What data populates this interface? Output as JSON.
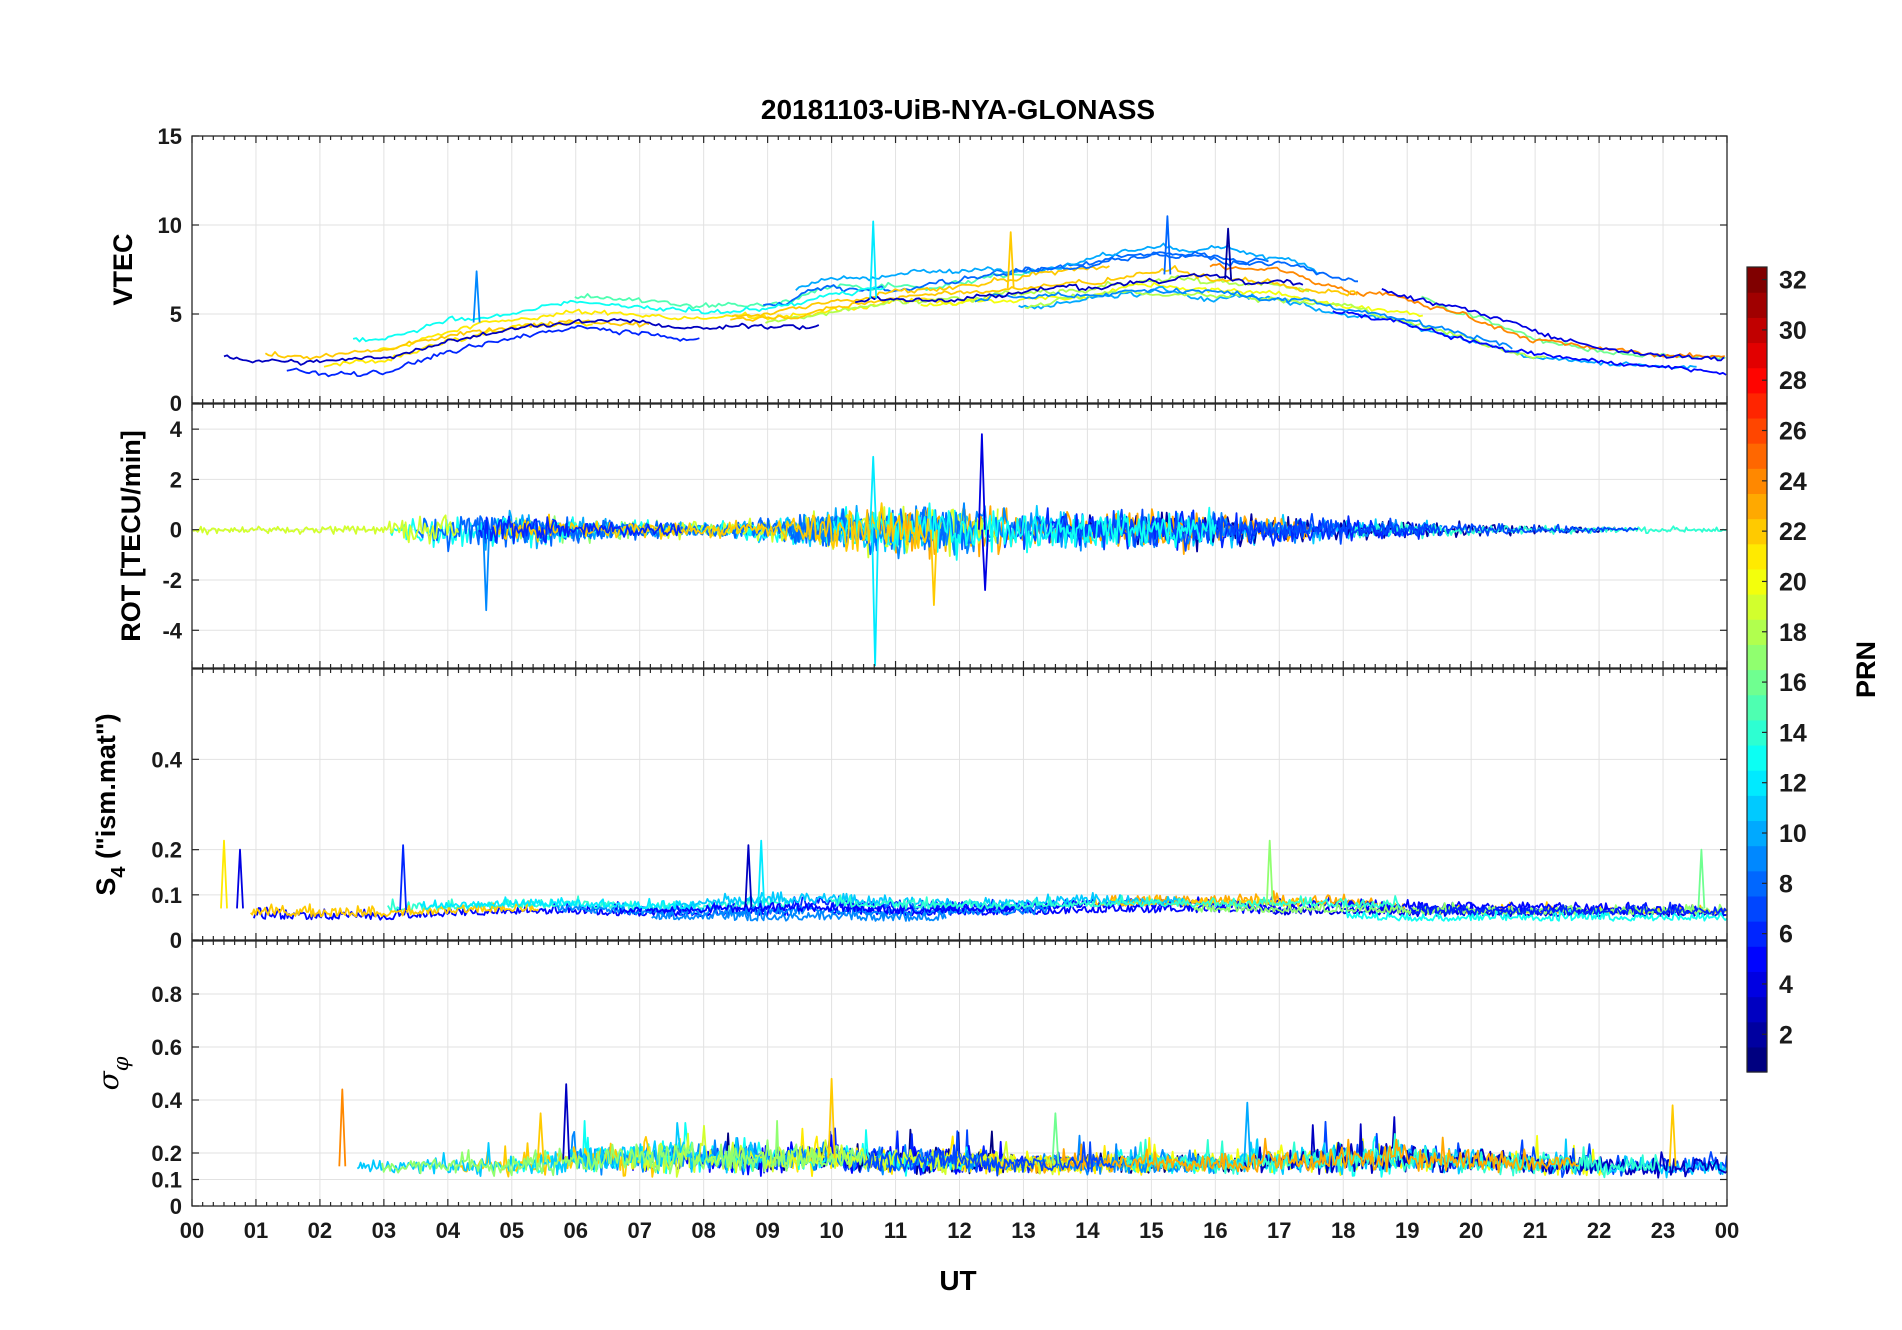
{
  "chart_data": {
    "type": "line",
    "title": "20181103-UiB-NYA-GLONASS",
    "xlabel": "UT",
    "x_ticks": [
      "00",
      "01",
      "02",
      "03",
      "04",
      "05",
      "06",
      "07",
      "08",
      "09",
      "10",
      "11",
      "12",
      "13",
      "14",
      "15",
      "16",
      "17",
      "18",
      "19",
      "20",
      "21",
      "22",
      "23",
      "00"
    ],
    "xlim_hours": [
      0,
      24
    ],
    "grid": true,
    "colorbar": {
      "label": "PRN",
      "range": [
        1,
        32
      ],
      "ticks": [
        "2",
        "4",
        "6",
        "8",
        "10",
        "12",
        "14",
        "16",
        "18",
        "20",
        "22",
        "24",
        "26",
        "28",
        "30",
        "32"
      ],
      "colormap": "jet"
    },
    "panels": [
      {
        "id": "vtec",
        "ylabel": "VTEC",
        "ylim": [
          0,
          15
        ],
        "y_ticks": [
          "0",
          "5",
          "10",
          "15"
        ],
        "y_tick_values": [
          0,
          5,
          10,
          15
        ],
        "envelope": {
          "hours": [
            0,
            1,
            2,
            3,
            4,
            5,
            6,
            7,
            8,
            9,
            10,
            11,
            12,
            13,
            14,
            15,
            16,
            17,
            18,
            19,
            20,
            21,
            22,
            23,
            24
          ],
          "median": [
            3.5,
            3.2,
            3.0,
            3.2,
            4.3,
            4.8,
            5.2,
            5.0,
            4.7,
            4.9,
            5.6,
            6.0,
            6.2,
            6.5,
            6.8,
            7.3,
            7.0,
            6.8,
            6.2,
            5.5,
            4.5,
            3.4,
            2.8,
            2.5,
            2.3
          ],
          "spread": [
            1.4,
            1.4,
            1.3,
            1.3,
            1.3,
            1.2,
            1.0,
            1.0,
            1.0,
            1.1,
            1.6,
            1.5,
            1.4,
            1.4,
            1.4,
            1.6,
            1.6,
            1.6,
            1.5,
            1.3,
            1.2,
            1.0,
            0.6,
            0.5,
            0.5
          ]
        },
        "peaks": [
          {
            "prn": 9,
            "hour": 4.45,
            "value": 7.4
          },
          {
            "prn": 12,
            "hour": 10.65,
            "value": 10.2
          },
          {
            "prn": 22,
            "hour": 12.8,
            "value": 9.6
          },
          {
            "prn": 8,
            "hour": 15.25,
            "value": 10.5
          },
          {
            "prn": 2,
            "hour": 16.2,
            "value": 9.8
          }
        ]
      },
      {
        "id": "rot",
        "ylabel": "ROT [TECU/min]",
        "ylim": [
          -5.5,
          5.0
        ],
        "y_ticks": [
          "-4",
          "-2",
          "0",
          "2",
          "4"
        ],
        "y_tick_values": [
          -4,
          -2,
          0,
          2,
          4
        ],
        "envelope": {
          "hours": [
            0,
            1,
            2,
            3,
            4,
            5,
            6,
            7,
            8,
            9,
            10,
            11,
            12,
            13,
            14,
            15,
            16,
            17,
            18,
            19,
            20,
            21,
            22,
            23,
            24
          ],
          "median": [
            0,
            0,
            0,
            0,
            0,
            0,
            0,
            0,
            0,
            0,
            0,
            0,
            0,
            0,
            0,
            0,
            0,
            0,
            0,
            0,
            0,
            0,
            0,
            0,
            0
          ],
          "spread": [
            0.2,
            0.15,
            0.15,
            0.3,
            0.9,
            0.8,
            0.5,
            0.4,
            0.3,
            0.5,
            0.9,
            1.1,
            1.1,
            0.9,
            0.8,
            0.9,
            0.8,
            0.6,
            0.5,
            0.4,
            0.3,
            0.2,
            0.15,
            0.15,
            0.15
          ]
        },
        "peaks": [
          {
            "prn": 9,
            "hour": 4.6,
            "value": -3.2
          },
          {
            "prn": 12,
            "hour": 10.65,
            "value": 2.9
          },
          {
            "prn": 12,
            "hour": 10.68,
            "value": -5.4
          },
          {
            "prn": 22,
            "hour": 11.6,
            "value": -3.0
          },
          {
            "prn": 4,
            "hour": 12.35,
            "value": 3.8
          },
          {
            "prn": 4,
            "hour": 12.4,
            "value": -2.4
          }
        ]
      },
      {
        "id": "s4",
        "ylabel": "S4 (\"ism.mat\")",
        "ylim": [
          0,
          0.6
        ],
        "y_ticks": [
          "0",
          "0.1",
          "0.2",
          "0.4"
        ],
        "y_tick_values": [
          0,
          0.1,
          0.2,
          0.4
        ],
        "envelope": {
          "hours": [
            0,
            1,
            2,
            3,
            4,
            5,
            6,
            7,
            8,
            9,
            10,
            11,
            12,
            13,
            14,
            15,
            16,
            17,
            18,
            19,
            20,
            21,
            22,
            23,
            24
          ],
          "median": [
            0.07,
            0.07,
            0.065,
            0.065,
            0.07,
            0.075,
            0.075,
            0.07,
            0.07,
            0.075,
            0.075,
            0.07,
            0.07,
            0.07,
            0.075,
            0.075,
            0.075,
            0.075,
            0.075,
            0.07,
            0.07,
            0.07,
            0.07,
            0.07,
            0.07
          ],
          "spread": [
            0.04,
            0.04,
            0.035,
            0.035,
            0.03,
            0.03,
            0.03,
            0.03,
            0.03,
            0.04,
            0.035,
            0.035,
            0.03,
            0.03,
            0.03,
            0.03,
            0.03,
            0.035,
            0.03,
            0.03,
            0.03,
            0.03,
            0.03,
            0.03,
            0.03
          ]
        },
        "peaks": [
          {
            "prn": 21,
            "hour": 0.5,
            "value": 0.22
          },
          {
            "prn": 4,
            "hour": 0.75,
            "value": 0.2
          },
          {
            "prn": 6,
            "hour": 3.3,
            "value": 0.21
          },
          {
            "prn": 12,
            "hour": 8.9,
            "value": 0.22
          },
          {
            "prn": 3,
            "hour": 8.7,
            "value": 0.21
          },
          {
            "prn": 17,
            "hour": 16.85,
            "value": 0.22
          },
          {
            "prn": 16,
            "hour": 23.6,
            "value": 0.2
          }
        ]
      },
      {
        "id": "sigma_phi",
        "ylabel": "σφ",
        "ylim": [
          0,
          1.0
        ],
        "y_ticks": [
          "0",
          "0.1",
          "0.2",
          "0.4",
          "0.6",
          "0.8"
        ],
        "y_tick_values": [
          0,
          0.1,
          0.2,
          0.4,
          0.6,
          0.8
        ],
        "envelope": {
          "hours": [
            0,
            1,
            2,
            3,
            4,
            5,
            6,
            7,
            8,
            9,
            10,
            11,
            12,
            13,
            14,
            15,
            16,
            17,
            18,
            19,
            20,
            21,
            22,
            23,
            24
          ],
          "median": [
            0.16,
            0.15,
            0.15,
            0.15,
            0.15,
            0.15,
            0.18,
            0.18,
            0.18,
            0.18,
            0.18,
            0.17,
            0.17,
            0.16,
            0.16,
            0.16,
            0.16,
            0.17,
            0.18,
            0.18,
            0.17,
            0.16,
            0.15,
            0.15,
            0.15
          ],
          "spread": [
            0.04,
            0.03,
            0.03,
            0.03,
            0.03,
            0.04,
            0.06,
            0.06,
            0.06,
            0.06,
            0.05,
            0.05,
            0.05,
            0.04,
            0.04,
            0.04,
            0.04,
            0.05,
            0.06,
            0.06,
            0.05,
            0.04,
            0.04,
            0.04,
            0.04
          ]
        },
        "peaks": [
          {
            "prn": 24,
            "hour": 2.35,
            "value": 0.44
          },
          {
            "prn": 22,
            "hour": 5.45,
            "value": 0.35
          },
          {
            "prn": 3,
            "hour": 5.85,
            "value": 0.46
          },
          {
            "prn": 22,
            "hour": 10.0,
            "value": 0.48
          },
          {
            "prn": 16,
            "hour": 13.5,
            "value": 0.35
          },
          {
            "prn": 10,
            "hour": 16.5,
            "value": 0.39
          },
          {
            "prn": 22,
            "hour": 23.15,
            "value": 0.38
          }
        ]
      }
    ]
  }
}
